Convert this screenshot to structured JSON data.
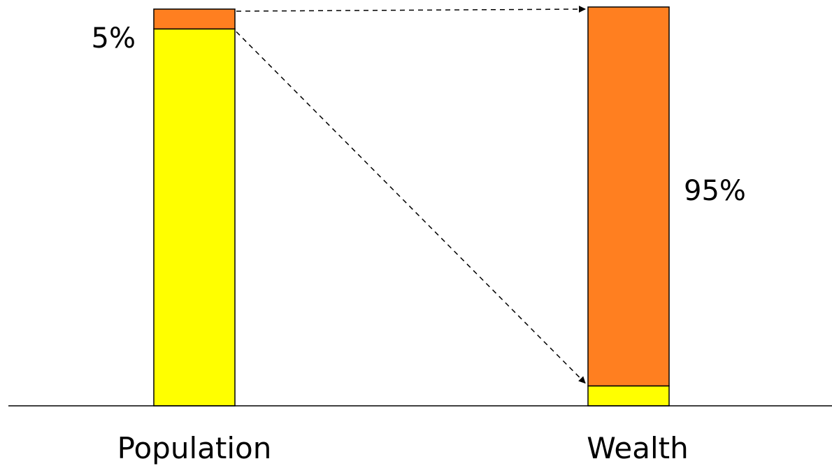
{
  "chart_data": {
    "type": "bar",
    "stacked": true,
    "categories": [
      "Population",
      "Wealth"
    ],
    "series": [
      {
        "values": [
          95,
          5
        ],
        "color": "#ffff00"
      },
      {
        "values": [
          5,
          95
        ],
        "color": "#ff7f20"
      }
    ],
    "ylim": [
      0,
      100
    ],
    "data_labels": [
      {
        "text": "5%",
        "category": "Population"
      },
      {
        "text": "95%",
        "category": "Wealth"
      }
    ],
    "annotations": [
      {
        "type": "dashed-arrow",
        "from": "top of Population top segment",
        "to": "top of Wealth top segment"
      },
      {
        "type": "dashed-arrow",
        "from": "bottom of Population top segment",
        "to": "bottom of Wealth top segment"
      }
    ],
    "grid": false,
    "legend": "none"
  }
}
